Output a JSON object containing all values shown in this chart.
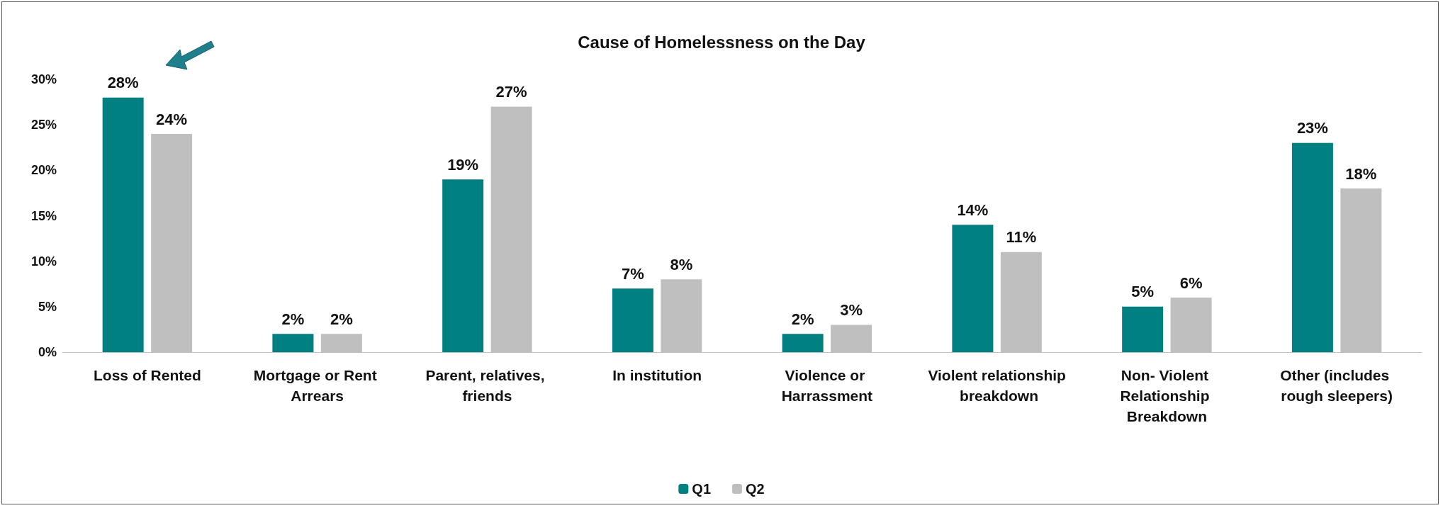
{
  "chart_data": {
    "type": "bar",
    "title": "Cause of Homelessness on the Day",
    "categories": [
      "Loss of Rented",
      "Mortgage or Rent Arrears",
      "Parent, relatives, friends",
      "In institution",
      "Violence or Harrassment",
      "Violent relationship breakdown",
      "Non- Violent Relationship Breakdown",
      "Other (includes rough sleepers)"
    ],
    "series": [
      {
        "name": "Q1",
        "color": "#008080",
        "values": [
          28,
          2,
          19,
          7,
          2,
          14,
          5,
          23
        ],
        "value_labels": [
          "28%",
          "2%",
          "19%",
          "7%",
          "2%",
          "14%",
          "5%",
          "23%"
        ]
      },
      {
        "name": "Q2",
        "color": "#bfbfbf",
        "values": [
          24,
          2,
          27,
          8,
          3,
          11,
          6,
          18
        ],
        "value_labels": [
          "24%",
          "2%",
          "27%",
          "8%",
          "3%",
          "11%",
          "6%",
          "18%"
        ]
      }
    ],
    "ylim": [
      0,
      30
    ],
    "yticks": [
      {
        "value": 0,
        "label": "0%"
      },
      {
        "value": 5,
        "label": "5%"
      },
      {
        "value": 10,
        "label": "10%"
      },
      {
        "value": 15,
        "label": "15%"
      },
      {
        "value": 20,
        "label": "20%"
      },
      {
        "value": 25,
        "label": "25%"
      },
      {
        "value": 30,
        "label": "30%"
      }
    ],
    "grid": false,
    "legend": "bottom"
  }
}
